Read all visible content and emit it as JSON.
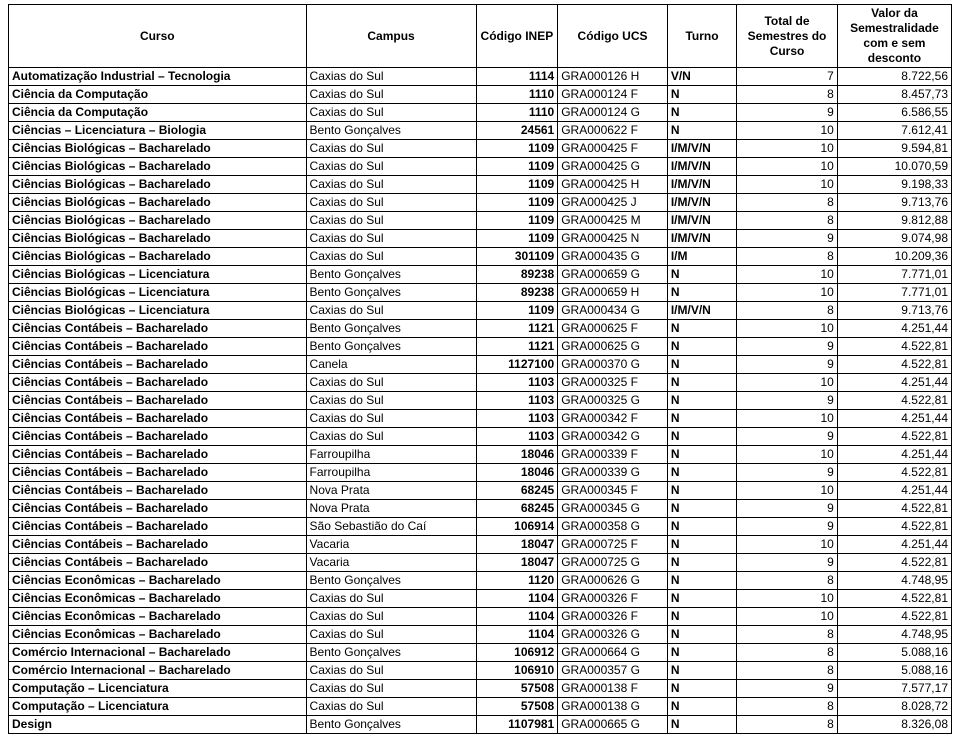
{
  "headers": [
    "Curso",
    "Campus",
    "Código INEP",
    "Código UCS",
    "Turno",
    "Total de Semestres do Curso",
    "Valor da Semestralidade com e sem desconto"
  ],
  "columns": [
    {
      "align": "left",
      "bold": true
    },
    {
      "align": "left",
      "bold": false
    },
    {
      "align": "right",
      "bold": true
    },
    {
      "align": "left",
      "bold": false
    },
    {
      "align": "left",
      "bold": true
    },
    {
      "align": "right",
      "bold": false
    },
    {
      "align": "right",
      "bold": false
    }
  ],
  "rows": [
    [
      "Automatização Industrial – Tecnologia",
      "Caxias do Sul",
      "1114",
      "GRA000126 H",
      "V/N",
      "7",
      "8.722,56"
    ],
    [
      "Ciência da Computação",
      "Caxias do Sul",
      "1110",
      "GRA000124 F",
      "N",
      "8",
      "8.457,73"
    ],
    [
      "Ciência da Computação",
      "Caxias do Sul",
      "1110",
      "GRA000124 G",
      "N",
      "9",
      "6.586,55"
    ],
    [
      "Ciências – Licenciatura – Biologia",
      "Bento Gonçalves",
      "24561",
      "GRA000622 F",
      "N",
      "10",
      "7.612,41"
    ],
    [
      "Ciências Biológicas – Bacharelado",
      "Caxias do Sul",
      "1109",
      "GRA000425 F",
      "I/M/V/N",
      "10",
      "9.594,81"
    ],
    [
      "Ciências Biológicas – Bacharelado",
      "Caxias do Sul",
      "1109",
      "GRA000425 G",
      "I/M/V/N",
      "10",
      "10.070,59"
    ],
    [
      "Ciências Biológicas – Bacharelado",
      "Caxias do Sul",
      "1109",
      "GRA000425 H",
      "I/M/V/N",
      "10",
      "9.198,33"
    ],
    [
      "Ciências Biológicas – Bacharelado",
      "Caxias do Sul",
      "1109",
      "GRA000425 J",
      "I/M/V/N",
      "8",
      "9.713,76"
    ],
    [
      "Ciências Biológicas – Bacharelado",
      "Caxias do Sul",
      "1109",
      "GRA000425 M",
      "I/M/V/N",
      "8",
      "9.812,88"
    ],
    [
      "Ciências Biológicas – Bacharelado",
      "Caxias do Sul",
      "1109",
      "GRA000425 N",
      "I/M/V/N",
      "9",
      "9.074,98"
    ],
    [
      "Ciências Biológicas – Bacharelado",
      "Caxias do Sul",
      "301109",
      "GRA000435 G",
      "I/M",
      "8",
      "10.209,36"
    ],
    [
      "Ciências Biológicas – Licenciatura",
      "Bento Gonçalves",
      "89238",
      "GRA000659 G",
      "N",
      "10",
      "7.771,01"
    ],
    [
      "Ciências Biológicas – Licenciatura",
      "Bento Gonçalves",
      "89238",
      "GRA000659 H",
      "N",
      "10",
      "7.771,01"
    ],
    [
      "Ciências Biológicas – Licenciatura",
      "Caxias do Sul",
      "1109",
      "GRA000434 G",
      "I/M/V/N",
      "8",
      "9.713,76"
    ],
    [
      "Ciências Contábeis – Bacharelado",
      "Bento Gonçalves",
      "1121",
      "GRA000625 F",
      "N",
      "10",
      "4.251,44"
    ],
    [
      "Ciências Contábeis – Bacharelado",
      "Bento Gonçalves",
      "1121",
      "GRA000625 G",
      "N",
      "9",
      "4.522,81"
    ],
    [
      "Ciências Contábeis – Bacharelado",
      "Canela",
      "1127100",
      "GRA000370 G",
      "N",
      "9",
      "4.522,81"
    ],
    [
      "Ciências Contábeis – Bacharelado",
      "Caxias do Sul",
      "1103",
      "GRA000325 F",
      "N",
      "10",
      "4.251,44"
    ],
    [
      "Ciências Contábeis – Bacharelado",
      "Caxias do Sul",
      "1103",
      "GRA000325 G",
      "N",
      "9",
      "4.522,81"
    ],
    [
      "Ciências Contábeis – Bacharelado",
      "Caxias do Sul",
      "1103",
      "GRA000342 F",
      "N",
      "10",
      "4.251,44"
    ],
    [
      "Ciências Contábeis – Bacharelado",
      "Caxias do Sul",
      "1103",
      "GRA000342 G",
      "N",
      "9",
      "4.522,81"
    ],
    [
      "Ciências Contábeis – Bacharelado",
      "Farroupilha",
      "18046",
      "GRA000339 F",
      "N",
      "10",
      "4.251,44"
    ],
    [
      "Ciências Contábeis – Bacharelado",
      "Farroupilha",
      "18046",
      "GRA000339 G",
      "N",
      "9",
      "4.522,81"
    ],
    [
      "Ciências Contábeis – Bacharelado",
      "Nova Prata",
      "68245",
      "GRA000345 F",
      "N",
      "10",
      "4.251,44"
    ],
    [
      "Ciências Contábeis – Bacharelado",
      "Nova Prata",
      "68245",
      "GRA000345 G",
      "N",
      "9",
      "4.522,81"
    ],
    [
      "Ciências Contábeis – Bacharelado",
      "São Sebastião do Caí",
      "106914",
      "GRA000358 G",
      "N",
      "9",
      "4.522,81"
    ],
    [
      "Ciências Contábeis – Bacharelado",
      "Vacaria",
      "18047",
      "GRA000725 F",
      "N",
      "10",
      "4.251,44"
    ],
    [
      "Ciências Contábeis – Bacharelado",
      "Vacaria",
      "18047",
      "GRA000725 G",
      "N",
      "9",
      "4.522,81"
    ],
    [
      "Ciências Econômicas – Bacharelado",
      "Bento Gonçalves",
      "1120",
      "GRA000626 G",
      "N",
      "8",
      "4.748,95"
    ],
    [
      "Ciências Econômicas – Bacharelado",
      "Caxias do Sul",
      "1104",
      "GRA000326 F",
      "N",
      "10",
      "4.522,81"
    ],
    [
      "Ciências Econômicas – Bacharelado",
      "Caxias do Sul",
      "1104",
      "GRA000326 F",
      "N",
      "10",
      "4.522,81"
    ],
    [
      "Ciências Econômicas – Bacharelado",
      "Caxias do Sul",
      "1104",
      "GRA000326 G",
      "N",
      "8",
      "4.748,95"
    ],
    [
      "Comércio Internacional – Bacharelado",
      "Bento Gonçalves",
      "106912",
      "GRA000664 G",
      "N",
      "8",
      "5.088,16"
    ],
    [
      "Comércio Internacional – Bacharelado",
      "Caxias do Sul",
      "106910",
      "GRA000357 G",
      "N",
      "8",
      "5.088,16"
    ],
    [
      "Computação – Licenciatura",
      "Caxias do Sul",
      "57508",
      "GRA000138 F",
      "N",
      "9",
      "7.577,17"
    ],
    [
      "Computação – Licenciatura",
      "Caxias do Sul",
      "57508",
      "GRA000138 G",
      "N",
      "8",
      "8.028,72"
    ],
    [
      "Design",
      "Bento Gonçalves",
      "1107981",
      "GRA000665 G",
      "N",
      "8",
      "8.326,08"
    ]
  ]
}
